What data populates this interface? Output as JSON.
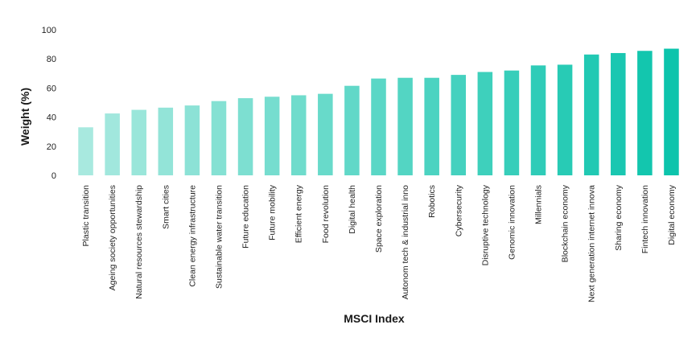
{
  "chart_data": {
    "type": "bar",
    "xlabel": "MSCI Index",
    "ylabel": "Weight (%)",
    "ylim": [
      0,
      100
    ],
    "yticks": [
      0,
      20,
      40,
      60,
      80,
      100
    ],
    "grid": false,
    "categories": [
      "Plastic transition",
      "Ageing society opportunities",
      "Natural resources stewardship",
      "Smart cities",
      "Clean energy infrastructure",
      "Sustainable water transition",
      "Future education",
      "Future mobility",
      "Efficient energy",
      "Food revolution",
      "Digital health",
      "Space exploration",
      "Autonom tech & industrial inno",
      "Robotics",
      "Cybersecurity",
      "Disruptive technology",
      "Genomic innovation",
      "Millennials",
      "Blockchain economy",
      "Next generation internet innova",
      "Sharing economy",
      "Fintech innovation",
      "Digital economy"
    ],
    "values": [
      33,
      42.5,
      45,
      46.5,
      48,
      51,
      53,
      54,
      55,
      56,
      61.5,
      66.5,
      67,
      67,
      69,
      71,
      72,
      75.5,
      76,
      83,
      84,
      85.5,
      87
    ],
    "colors": {
      "bar_start": "#a8e9df",
      "bar_end": "#0cc4ac"
    }
  }
}
